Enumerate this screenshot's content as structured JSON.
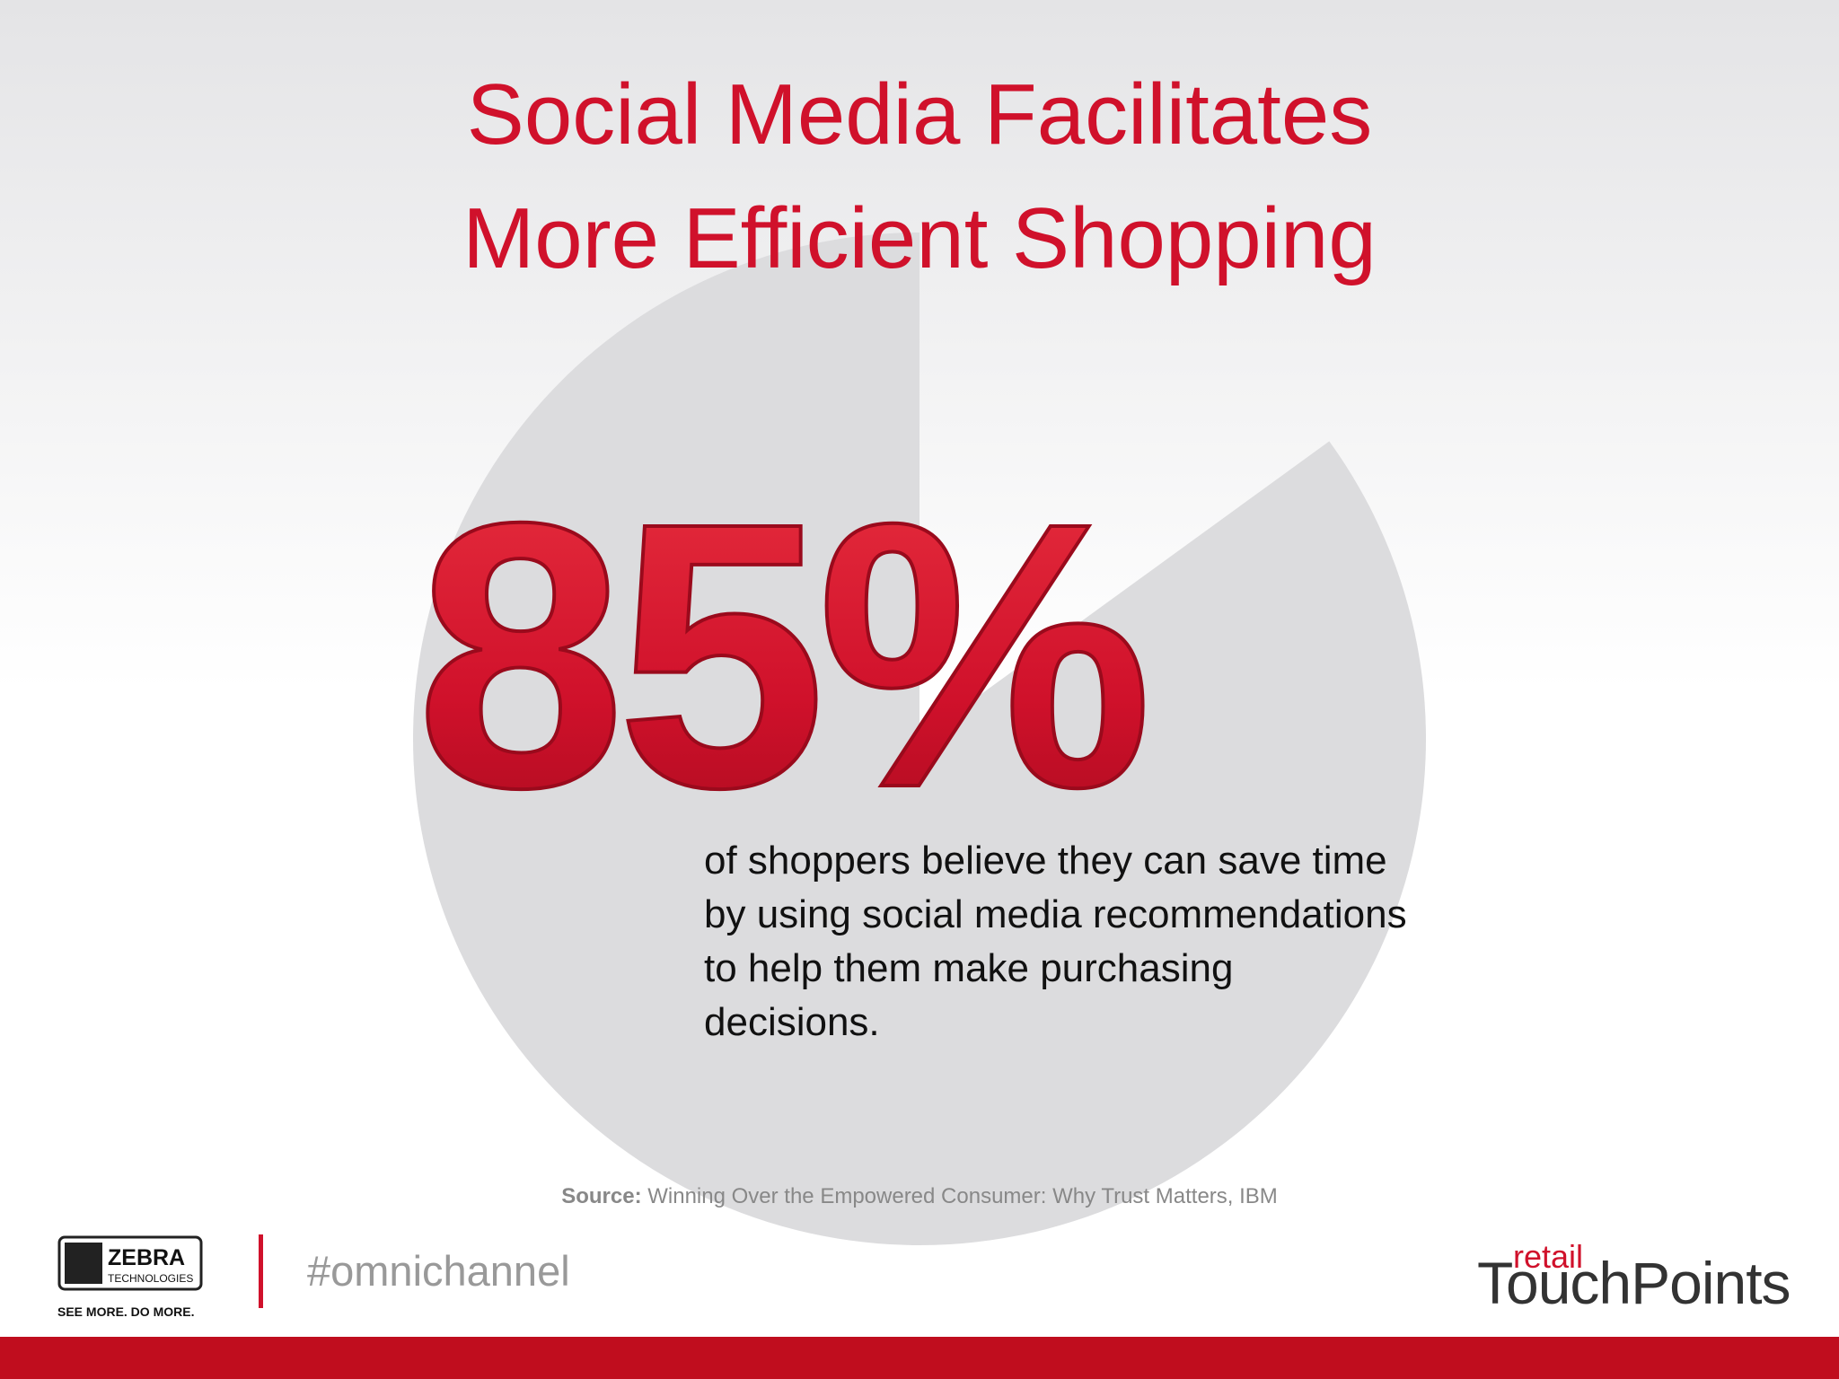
{
  "title": [
    "Social Media Facilitates",
    "More Efficient Shopping"
  ],
  "stat": {
    "value": 85,
    "label": "85%"
  },
  "description": [
    "of shoppers believe they can save time",
    "by using social media recommendations",
    "to help them make purchasing",
    "decisions."
  ],
  "source": {
    "label": "Source:",
    "text": "Winning Over the Empowered Consumer: Why Trust Matters, IBM"
  },
  "footer": {
    "brand": "ZEBRA",
    "brand_sub": "TECHNOLOGIES",
    "tagline": "SEE MORE. DO MORE.",
    "hashtag": "#omnichannel",
    "partner_top": "retail",
    "partner": "TouchPoints"
  }
}
